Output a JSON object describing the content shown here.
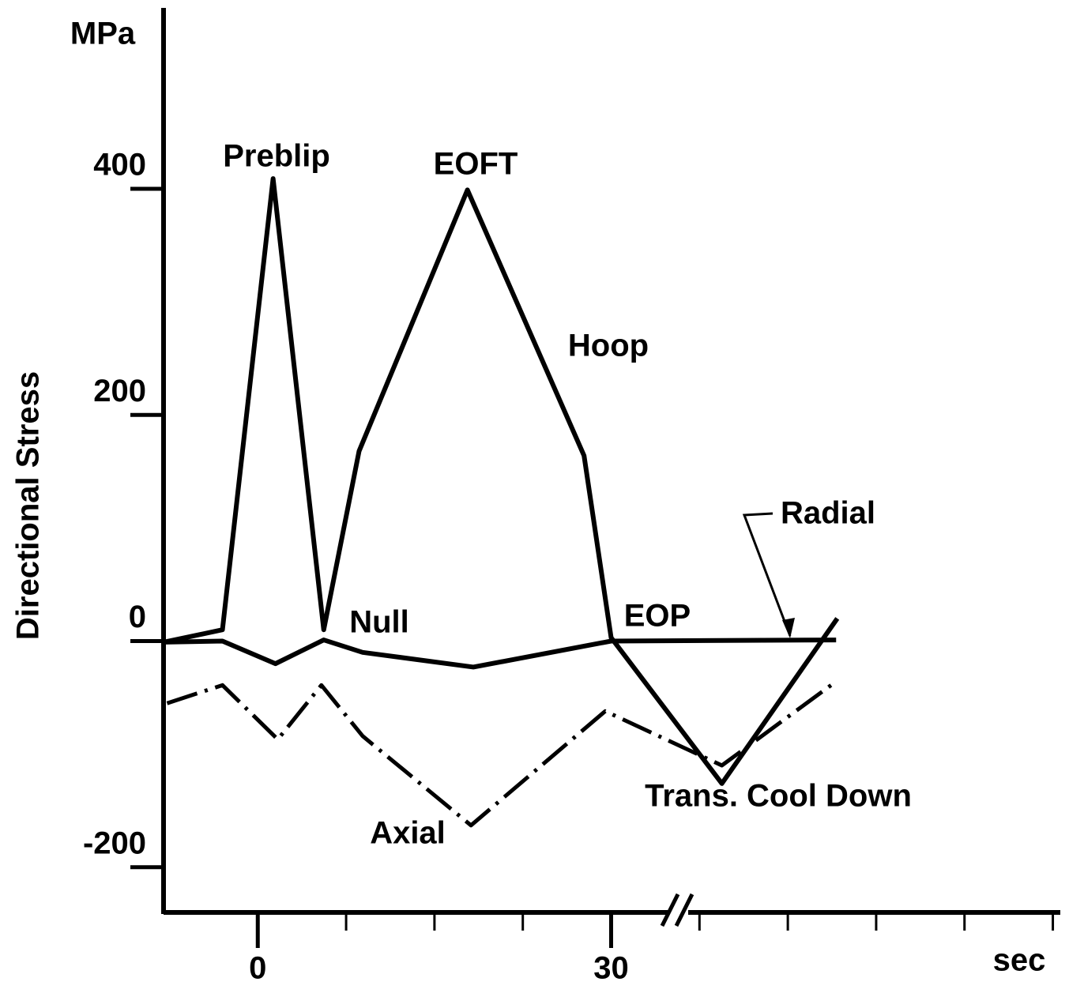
{
  "chart_data": {
    "type": "line",
    "y_label": "Directional Stress",
    "y_unit": "MPa",
    "x_unit": "sec",
    "xlim": [
      -8,
      68
    ],
    "ylim": [
      -240,
      560
    ],
    "xticks": [
      0,
      30
    ],
    "xminor_ticks": [
      7.5,
      15,
      22.5,
      37.5,
      45,
      52.5,
      60,
      67.5
    ],
    "yticks": [
      -200,
      0,
      200,
      400
    ],
    "series": [
      {
        "name": "Hoop",
        "color": "#000000",
        "x": [
          -8,
          -3,
          1.3,
          5.6,
          8.6,
          17.8,
          27.7,
          30,
          39.4,
          49.2
        ],
        "values": [
          -1,
          10,
          409,
          10,
          168,
          399,
          164,
          3,
          -126,
          20
        ]
      },
      {
        "name": "Radial",
        "color": "#000000",
        "x": [
          -8,
          -3,
          1.5,
          5.6,
          8.9,
          18.3,
          30,
          49.1
        ],
        "values": [
          -1,
          0,
          -20,
          1,
          -10,
          -23,
          0,
          1
        ]
      },
      {
        "name": "Axial",
        "color": "#000000",
        "x": [
          -7.7,
          -3,
          1.7,
          5.4,
          8.9,
          18.1,
          29.5,
          39.4,
          48.8
        ],
        "values": [
          -55,
          -39,
          -87,
          -39,
          -84,
          -163,
          -62,
          -110,
          -38
        ]
      }
    ],
    "annotations": [
      "Preblip",
      "EOFT",
      "Null",
      "EOP",
      "Trans. Cool Down"
    ]
  }
}
